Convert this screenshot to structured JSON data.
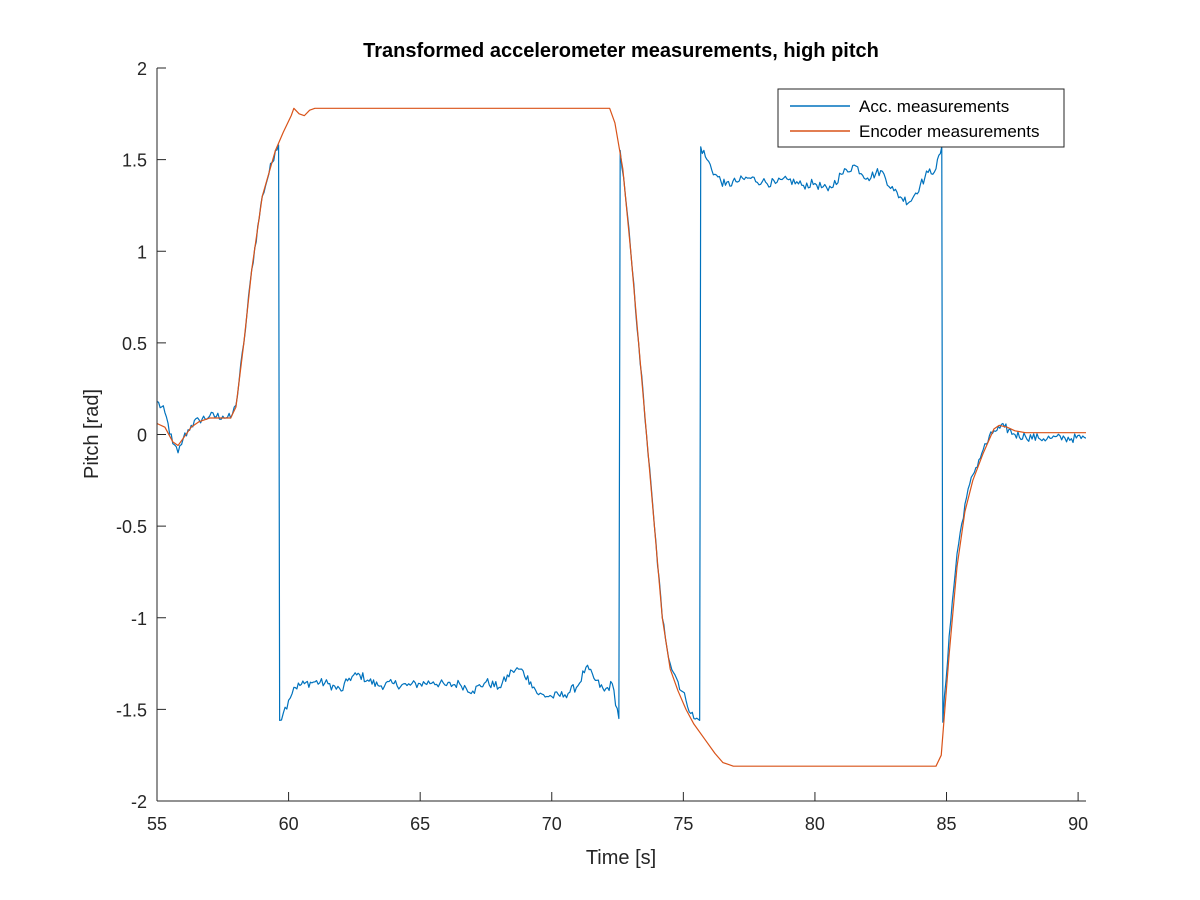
{
  "chart_data": {
    "type": "line",
    "title": "Transformed accelerometer measurements, high pitch",
    "xlabel": "Time [s]",
    "ylabel": "Pitch [rad]",
    "xlim": [
      55,
      90.3
    ],
    "ylim": [
      -2,
      2
    ],
    "x_ticks": [
      55,
      60,
      65,
      70,
      75,
      80,
      85,
      90
    ],
    "y_ticks": [
      -2,
      -1.5,
      -1,
      -0.5,
      0,
      0.5,
      1,
      1.5,
      2
    ],
    "x_tick_labels": [
      "55",
      "60",
      "65",
      "70",
      "75",
      "80",
      "85",
      "90"
    ],
    "y_tick_labels": [
      "-2",
      "-1.5",
      "-1",
      "-0.5",
      "0",
      "0.5",
      "1",
      "1.5",
      "2"
    ],
    "grid": false,
    "legend": {
      "placement": "top-right",
      "entries": [
        "Acc. measurements",
        "Encoder measurements"
      ]
    },
    "series": [
      {
        "name": "Acc. measurements",
        "color": "#0072BD",
        "noise": true,
        "points": [
          [
            55.0,
            0.18
          ],
          [
            55.3,
            0.12
          ],
          [
            55.6,
            -0.05
          ],
          [
            55.8,
            -0.1
          ],
          [
            56.0,
            -0.02
          ],
          [
            56.3,
            0.05
          ],
          [
            56.6,
            0.08
          ],
          [
            57.0,
            0.1
          ],
          [
            57.5,
            0.1
          ],
          [
            57.8,
            0.09
          ],
          [
            58.0,
            0.16
          ],
          [
            58.3,
            0.5
          ],
          [
            58.6,
            0.9
          ],
          [
            59.0,
            1.3
          ],
          [
            59.5,
            1.55
          ],
          [
            59.62,
            1.58
          ],
          [
            59.66,
            -1.56
          ],
          [
            59.8,
            -1.52
          ],
          [
            60.0,
            -1.45
          ],
          [
            60.2,
            -1.38
          ],
          [
            60.6,
            -1.36
          ],
          [
            61.0,
            -1.35
          ],
          [
            61.5,
            -1.36
          ],
          [
            62.0,
            -1.4
          ],
          [
            62.3,
            -1.33
          ],
          [
            62.7,
            -1.31
          ],
          [
            63.0,
            -1.34
          ],
          [
            63.4,
            -1.37
          ],
          [
            64.0,
            -1.36
          ],
          [
            64.5,
            -1.37
          ],
          [
            65.0,
            -1.36
          ],
          [
            65.5,
            -1.35
          ],
          [
            66.0,
            -1.37
          ],
          [
            66.5,
            -1.36
          ],
          [
            67.0,
            -1.4
          ],
          [
            67.5,
            -1.35
          ],
          [
            68.0,
            -1.38
          ],
          [
            68.5,
            -1.29
          ],
          [
            68.8,
            -1.28
          ],
          [
            69.2,
            -1.35
          ],
          [
            69.5,
            -1.42
          ],
          [
            70.0,
            -1.43
          ],
          [
            70.5,
            -1.42
          ],
          [
            71.0,
            -1.37
          ],
          [
            71.3,
            -1.27
          ],
          [
            71.6,
            -1.33
          ],
          [
            72.0,
            -1.4
          ],
          [
            72.3,
            -1.36
          ],
          [
            72.55,
            -1.55
          ],
          [
            72.6,
            1.55
          ],
          [
            72.8,
            1.3
          ],
          [
            73.0,
            1.0
          ],
          [
            73.3,
            0.5
          ],
          [
            73.6,
            0.0
          ],
          [
            73.9,
            -0.5
          ],
          [
            74.2,
            -1.0
          ],
          [
            74.5,
            -1.25
          ],
          [
            74.8,
            -1.35
          ],
          [
            75.1,
            -1.45
          ],
          [
            75.4,
            -1.55
          ],
          [
            75.62,
            -1.56
          ],
          [
            75.66,
            1.57
          ],
          [
            75.9,
            1.5
          ],
          [
            76.2,
            1.42
          ],
          [
            76.6,
            1.36
          ],
          [
            77.0,
            1.38
          ],
          [
            77.5,
            1.4
          ],
          [
            78.0,
            1.38
          ],
          [
            78.5,
            1.37
          ],
          [
            79.0,
            1.39
          ],
          [
            79.5,
            1.36
          ],
          [
            80.0,
            1.37
          ],
          [
            80.5,
            1.33
          ],
          [
            81.0,
            1.42
          ],
          [
            81.5,
            1.47
          ],
          [
            82.0,
            1.4
          ],
          [
            82.5,
            1.44
          ],
          [
            83.0,
            1.33
          ],
          [
            83.3,
            1.29
          ],
          [
            83.6,
            1.27
          ],
          [
            84.0,
            1.36
          ],
          [
            84.3,
            1.43
          ],
          [
            84.6,
            1.45
          ],
          [
            84.82,
            1.57
          ],
          [
            84.86,
            -1.57
          ],
          [
            85.1,
            -1.1
          ],
          [
            85.4,
            -0.65
          ],
          [
            85.7,
            -0.38
          ],
          [
            86.0,
            -0.22
          ],
          [
            86.4,
            -0.08
          ],
          [
            86.8,
            0.02
          ],
          [
            87.2,
            0.04
          ],
          [
            87.6,
            0.0
          ],
          [
            88.0,
            -0.01
          ],
          [
            88.5,
            -0.02
          ],
          [
            89.0,
            -0.02
          ],
          [
            89.5,
            -0.02
          ],
          [
            90.3,
            -0.02
          ]
        ]
      },
      {
        "name": "Encoder measurements",
        "color": "#D95319",
        "noise": false,
        "points": [
          [
            55.0,
            0.06
          ],
          [
            55.3,
            0.04
          ],
          [
            55.6,
            -0.04
          ],
          [
            55.8,
            -0.06
          ],
          [
            56.0,
            -0.02
          ],
          [
            56.3,
            0.04
          ],
          [
            56.6,
            0.07
          ],
          [
            57.0,
            0.09
          ],
          [
            57.5,
            0.09
          ],
          [
            57.8,
            0.09
          ],
          [
            58.0,
            0.15
          ],
          [
            58.3,
            0.5
          ],
          [
            58.6,
            0.9
          ],
          [
            59.0,
            1.3
          ],
          [
            59.5,
            1.55
          ],
          [
            59.8,
            1.65
          ],
          [
            60.1,
            1.74
          ],
          [
            60.2,
            1.78
          ],
          [
            60.4,
            1.75
          ],
          [
            60.6,
            1.74
          ],
          [
            60.8,
            1.77
          ],
          [
            61.0,
            1.78
          ],
          [
            65.0,
            1.78
          ],
          [
            70.0,
            1.78
          ],
          [
            72.2,
            1.78
          ],
          [
            72.4,
            1.7
          ],
          [
            72.7,
            1.45
          ],
          [
            73.0,
            1.0
          ],
          [
            73.3,
            0.5
          ],
          [
            73.6,
            0.0
          ],
          [
            73.9,
            -0.5
          ],
          [
            74.2,
            -1.0
          ],
          [
            74.5,
            -1.28
          ],
          [
            74.8,
            -1.4
          ],
          [
            75.1,
            -1.5
          ],
          [
            75.4,
            -1.58
          ],
          [
            75.8,
            -1.66
          ],
          [
            76.2,
            -1.74
          ],
          [
            76.5,
            -1.79
          ],
          [
            76.7,
            -1.8
          ],
          [
            76.9,
            -1.81
          ],
          [
            77.5,
            -1.81
          ],
          [
            80.0,
            -1.81
          ],
          [
            84.0,
            -1.81
          ],
          [
            84.6,
            -1.81
          ],
          [
            84.8,
            -1.75
          ],
          [
            85.1,
            -1.2
          ],
          [
            85.4,
            -0.72
          ],
          [
            85.7,
            -0.42
          ],
          [
            86.0,
            -0.25
          ],
          [
            86.4,
            -0.1
          ],
          [
            86.8,
            0.03
          ],
          [
            87.0,
            0.05
          ],
          [
            87.3,
            0.04
          ],
          [
            87.6,
            0.02
          ],
          [
            88.0,
            0.01
          ],
          [
            90.3,
            0.01
          ]
        ]
      }
    ]
  }
}
